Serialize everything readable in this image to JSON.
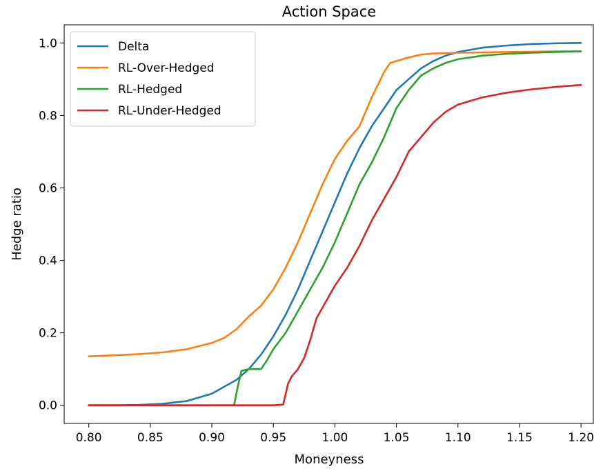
{
  "chart_data": {
    "type": "line",
    "title": "Action Space",
    "xlabel": "Moneyness",
    "ylabel": "Hedge ratio",
    "xlim": [
      0.78,
      1.21
    ],
    "ylim": [
      -0.05,
      1.05
    ],
    "xticks": [
      0.8,
      0.85,
      0.9,
      0.95,
      1.0,
      1.05,
      1.1,
      1.15,
      1.2
    ],
    "xtick_labels": [
      "0.80",
      "0.85",
      "0.90",
      "0.95",
      "1.00",
      "1.05",
      "1.10",
      "1.15",
      "1.20"
    ],
    "yticks": [
      0.0,
      0.2,
      0.4,
      0.6,
      0.8,
      1.0
    ],
    "ytick_labels": [
      "0.0",
      "0.2",
      "0.4",
      "0.6",
      "0.8",
      "1.0"
    ],
    "grid": false,
    "legend": "top-left",
    "series": [
      {
        "name": "Delta",
        "color": "#1f77b4",
        "x": [
          0.8,
          0.82,
          0.84,
          0.86,
          0.88,
          0.9,
          0.92,
          0.93,
          0.94,
          0.95,
          0.96,
          0.97,
          0.98,
          0.99,
          1.0,
          1.01,
          1.02,
          1.03,
          1.04,
          1.05,
          1.06,
          1.07,
          1.08,
          1.09,
          1.1,
          1.12,
          1.14,
          1.16,
          1.18,
          1.2
        ],
        "y": [
          0.0,
          0.0,
          0.001,
          0.004,
          0.012,
          0.032,
          0.07,
          0.1,
          0.14,
          0.19,
          0.25,
          0.32,
          0.4,
          0.48,
          0.56,
          0.64,
          0.71,
          0.77,
          0.82,
          0.87,
          0.9,
          0.93,
          0.95,
          0.965,
          0.975,
          0.987,
          0.993,
          0.997,
          0.999,
          1.0
        ]
      },
      {
        "name": "RL-Over-Hedged",
        "color": "#ff7f0e",
        "x": [
          0.8,
          0.82,
          0.84,
          0.86,
          0.88,
          0.9,
          0.91,
          0.92,
          0.93,
          0.94,
          0.95,
          0.96,
          0.97,
          0.98,
          0.99,
          1.0,
          1.01,
          1.02,
          1.03,
          1.04,
          1.045,
          1.05,
          1.06,
          1.07,
          1.08,
          1.1,
          1.12,
          1.14,
          1.16,
          1.18,
          1.2
        ],
        "y": [
          0.135,
          0.138,
          0.141,
          0.146,
          0.155,
          0.172,
          0.186,
          0.21,
          0.245,
          0.275,
          0.32,
          0.38,
          0.45,
          0.53,
          0.61,
          0.68,
          0.73,
          0.77,
          0.85,
          0.92,
          0.945,
          0.95,
          0.96,
          0.968,
          0.971,
          0.973,
          0.974,
          0.975,
          0.976,
          0.977,
          0.977
        ]
      },
      {
        "name": "RL-Hedged",
        "color": "#2ca02c",
        "x": [
          0.8,
          0.85,
          0.9,
          0.918,
          0.921,
          0.924,
          0.93,
          0.935,
          0.94,
          0.945,
          0.95,
          0.96,
          0.97,
          0.98,
          0.99,
          1.0,
          1.01,
          1.02,
          1.03,
          1.04,
          1.05,
          1.06,
          1.07,
          1.08,
          1.09,
          1.1,
          1.12,
          1.14,
          1.16,
          1.18,
          1.2
        ],
        "y": [
          0.0,
          0.0,
          0.0,
          0.0,
          0.05,
          0.095,
          0.1,
          0.1,
          0.1,
          0.125,
          0.155,
          0.2,
          0.26,
          0.32,
          0.38,
          0.45,
          0.53,
          0.61,
          0.67,
          0.74,
          0.82,
          0.87,
          0.91,
          0.93,
          0.945,
          0.955,
          0.965,
          0.97,
          0.973,
          0.975,
          0.977
        ]
      },
      {
        "name": "RL-Under-Hedged",
        "color": "#d62728",
        "x": [
          0.8,
          0.85,
          0.9,
          0.95,
          0.958,
          0.962,
          0.965,
          0.97,
          0.975,
          0.98,
          0.985,
          0.99,
          1.0,
          1.01,
          1.02,
          1.03,
          1.04,
          1.05,
          1.06,
          1.07,
          1.08,
          1.09,
          1.1,
          1.12,
          1.14,
          1.16,
          1.18,
          1.2
        ],
        "y": [
          0.0,
          0.0,
          0.0,
          0.0,
          0.002,
          0.06,
          0.08,
          0.1,
          0.13,
          0.18,
          0.24,
          0.27,
          0.33,
          0.38,
          0.44,
          0.51,
          0.57,
          0.63,
          0.7,
          0.74,
          0.78,
          0.81,
          0.83,
          0.85,
          0.863,
          0.872,
          0.879,
          0.884
        ]
      }
    ]
  }
}
